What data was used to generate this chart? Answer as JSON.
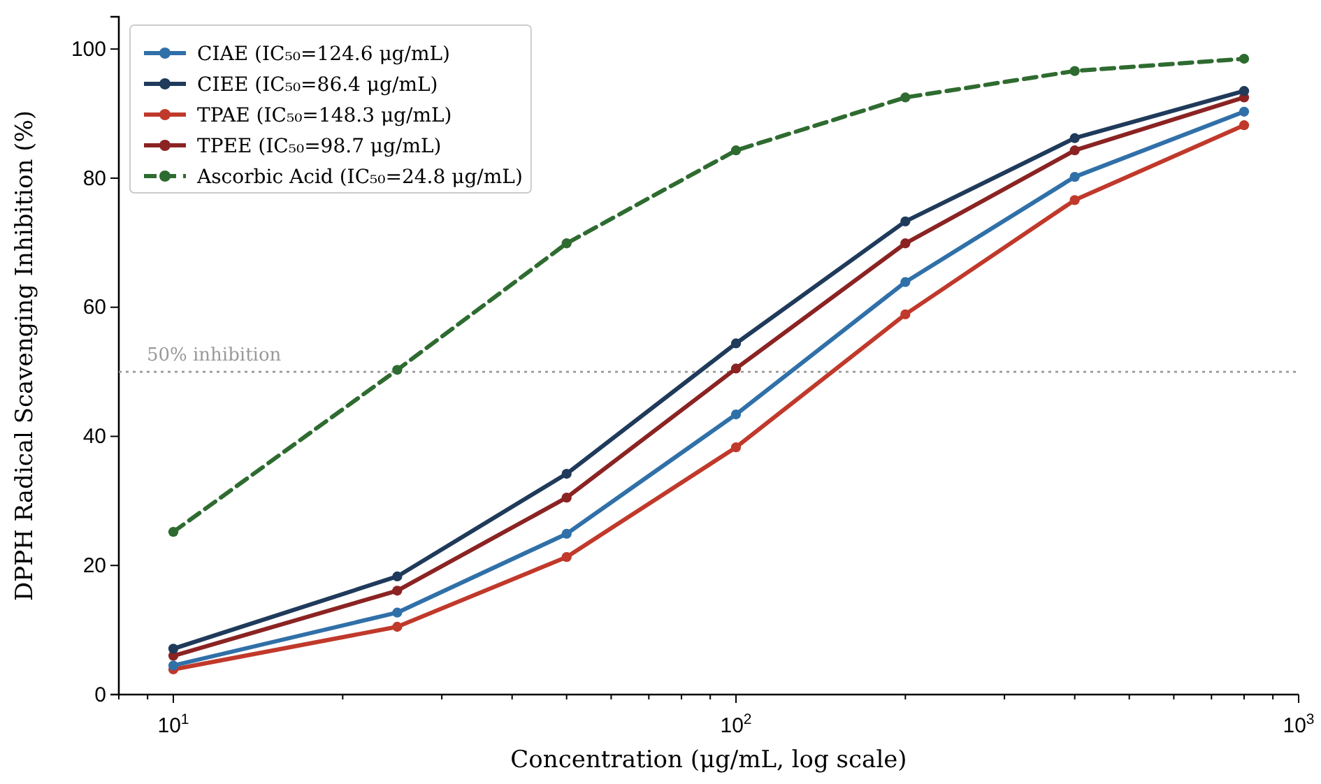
{
  "chart_data": {
    "type": "line",
    "xlabel": "Concentration (μg/mL, log scale)",
    "ylabel": "DPPH Radical Scavenging Inhibition (%)",
    "x": [
      10,
      25,
      50,
      100,
      200,
      400,
      800
    ],
    "series": [
      {
        "name": "CIAE (IC₅₀=124.6 μg/mL)",
        "color": "#3070a8",
        "values": [
          4.5,
          12.7,
          24.9,
          43.4,
          63.9,
          80.2,
          90.3
        ]
      },
      {
        "name": "CIEE (IC₅₀=86.4 μg/mL)",
        "color": "#1f3a5a",
        "values": [
          7.1,
          18.3,
          34.2,
          54.4,
          73.3,
          86.2,
          93.5
        ]
      },
      {
        "name": "TPAE (IC₅₀=148.3 μg/mL)",
        "color": "#c0392b",
        "values": [
          3.9,
          10.5,
          21.3,
          38.3,
          58.9,
          76.6,
          88.2
        ]
      },
      {
        "name": "TPEE (IC₅₀=98.7 μg/mL)",
        "color": "#8b2323",
        "values": [
          6.0,
          16.1,
          30.5,
          50.5,
          69.9,
          84.3,
          92.5
        ]
      },
      {
        "name": "Ascorbic Acid (IC₅₀=24.8 μg/mL)",
        "color": "#2e6b30",
        "values": [
          25.2,
          50.3,
          69.9,
          84.3,
          92.5,
          96.6,
          98.5
        ],
        "line_style": "dashed"
      }
    ],
    "log": "x",
    "xlim": [
      8,
      1000
    ],
    "xticks": [
      {
        "value": 8,
        "label": null
      },
      {
        "value": 9,
        "label": null
      },
      {
        "value": 10,
        "label": "10$^{1}$"
      },
      {
        "value": 20,
        "label": null
      },
      {
        "value": 30,
        "label": null
      },
      {
        "value": 40,
        "label": null
      },
      {
        "value": 50,
        "label": null
      },
      {
        "value": 60,
        "label": null
      },
      {
        "value": 70,
        "label": null
      },
      {
        "value": 80,
        "label": null
      },
      {
        "value": 90,
        "label": null
      },
      {
        "value": 100,
        "label": "10$^{2}$"
      },
      {
        "value": 200,
        "label": null
      },
      {
        "value": 300,
        "label": null
      },
      {
        "value": 400,
        "label": null
      },
      {
        "value": 500,
        "label": null
      },
      {
        "value": 600,
        "label": null
      },
      {
        "value": 700,
        "label": null
      },
      {
        "value": 800,
        "label": null
      },
      {
        "value": 900,
        "label": null
      },
      {
        "value": 1000,
        "label": "10$^{3}$"
      }
    ],
    "ylim": [
      0,
      105
    ],
    "yticks": [
      0,
      20,
      40,
      60,
      80,
      100
    ],
    "ref_lines": [
      {
        "axis": "y",
        "value": 50,
        "label": "50% inhibition",
        "color": "#999999",
        "line_style": "dotted"
      }
    ],
    "legend": "top left",
    "marker": "circle",
    "line_style": "solid",
    "grid": false
  }
}
